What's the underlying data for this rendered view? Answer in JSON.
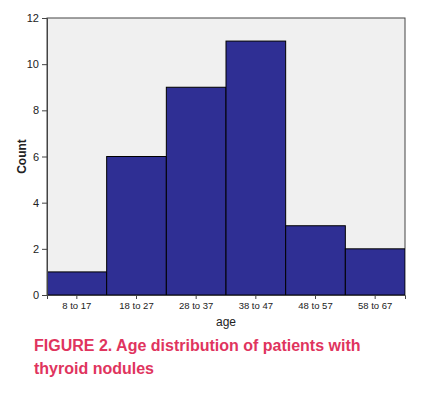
{
  "chart_data": {
    "type": "bar",
    "title": "FIGURE 2. Age distribution of patients with thyroid nodules",
    "xlabel": "age",
    "ylabel": "Count",
    "categories": [
      "8 to 17",
      "18 to 27",
      "28 to 37",
      "38 to 47",
      "48 to 57",
      "58 to 67"
    ],
    "values": [
      1,
      6,
      9,
      11,
      3,
      2
    ],
    "color": "#2f2f94",
    "ylim": [
      0,
      12
    ],
    "yticks": [
      0,
      2,
      4,
      6,
      8,
      10,
      12
    ]
  }
}
